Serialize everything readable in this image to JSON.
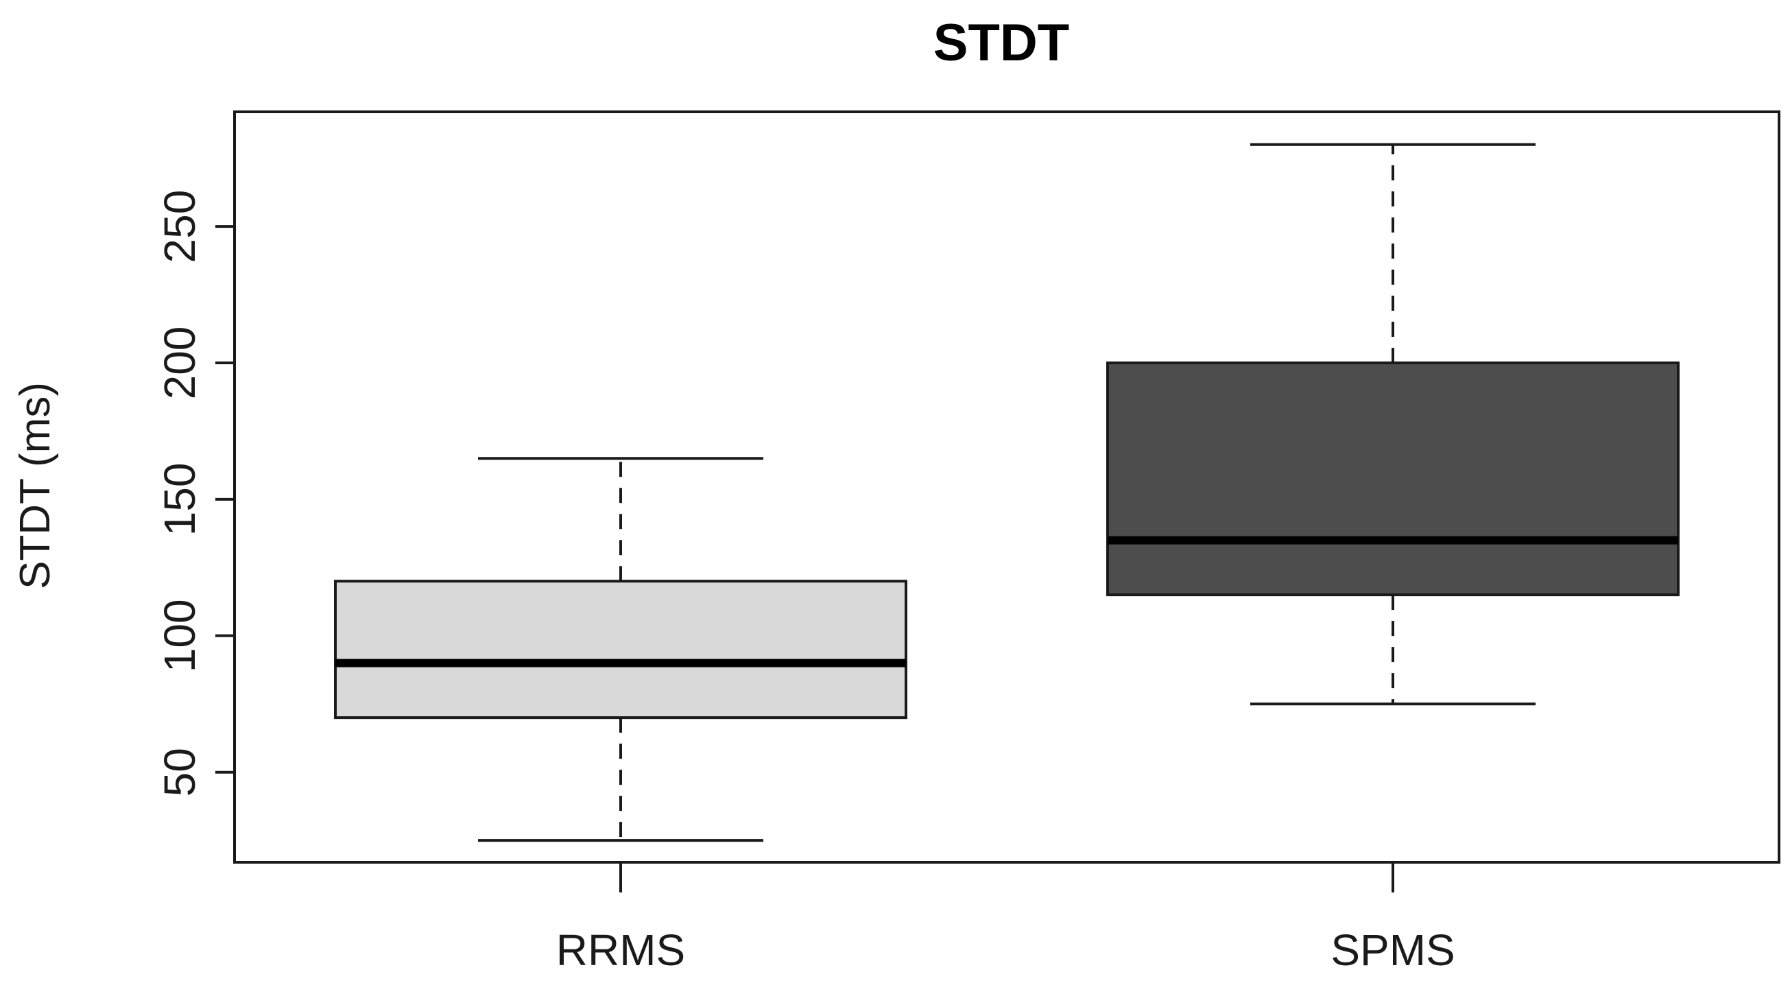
{
  "chart_data": {
    "type": "boxplot",
    "title": "STDT",
    "xlabel": "",
    "ylabel": "STDT (ms)",
    "ylim": [
      17,
      292
    ],
    "yticks": [
      "50",
      "100",
      "150",
      "200",
      "250"
    ],
    "categories": [
      "RRMS",
      "SPMS"
    ],
    "boxes": [
      {
        "category": "RRMS",
        "min": 25,
        "q1": 70,
        "median": 90,
        "q3": 120,
        "max": 165,
        "fill": "#d9d9d9"
      },
      {
        "category": "SPMS",
        "min": 75,
        "q1": 115,
        "median": 135,
        "q3": 200,
        "max": 280,
        "fill": "#4d4d4d"
      }
    ],
    "grid": false,
    "legend": "none"
  }
}
